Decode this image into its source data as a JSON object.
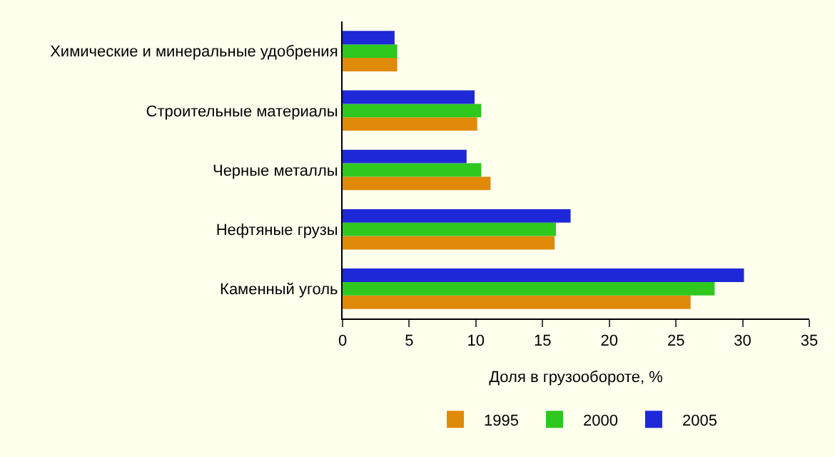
{
  "chart_data": {
    "type": "bar",
    "orientation": "horizontal",
    "xlabel": "Доля в грузообороте, %",
    "categories": [
      "Химические и минеральные удобрения",
      "Строительные материалы",
      "Черные металлы",
      "Нефтяные грузы",
      "Каменный уголь"
    ],
    "series": [
      {
        "name": "1995",
        "color": "#e08a0a",
        "values": [
          4.1,
          10.1,
          11.1,
          15.9,
          26.1
        ]
      },
      {
        "name": "2000",
        "color": "#2ec81e",
        "values": [
          4.1,
          10.4,
          10.4,
          16.0,
          27.9
        ]
      },
      {
        "name": "2005",
        "color": "#1e28d8",
        "values": [
          3.9,
          9.9,
          9.3,
          17.1,
          30.1
        ]
      }
    ],
    "xlim": [
      0,
      35
    ],
    "xticks": [
      0,
      5,
      10,
      15,
      20,
      25,
      30,
      35
    ],
    "grid": false,
    "legend": "bottom"
  }
}
